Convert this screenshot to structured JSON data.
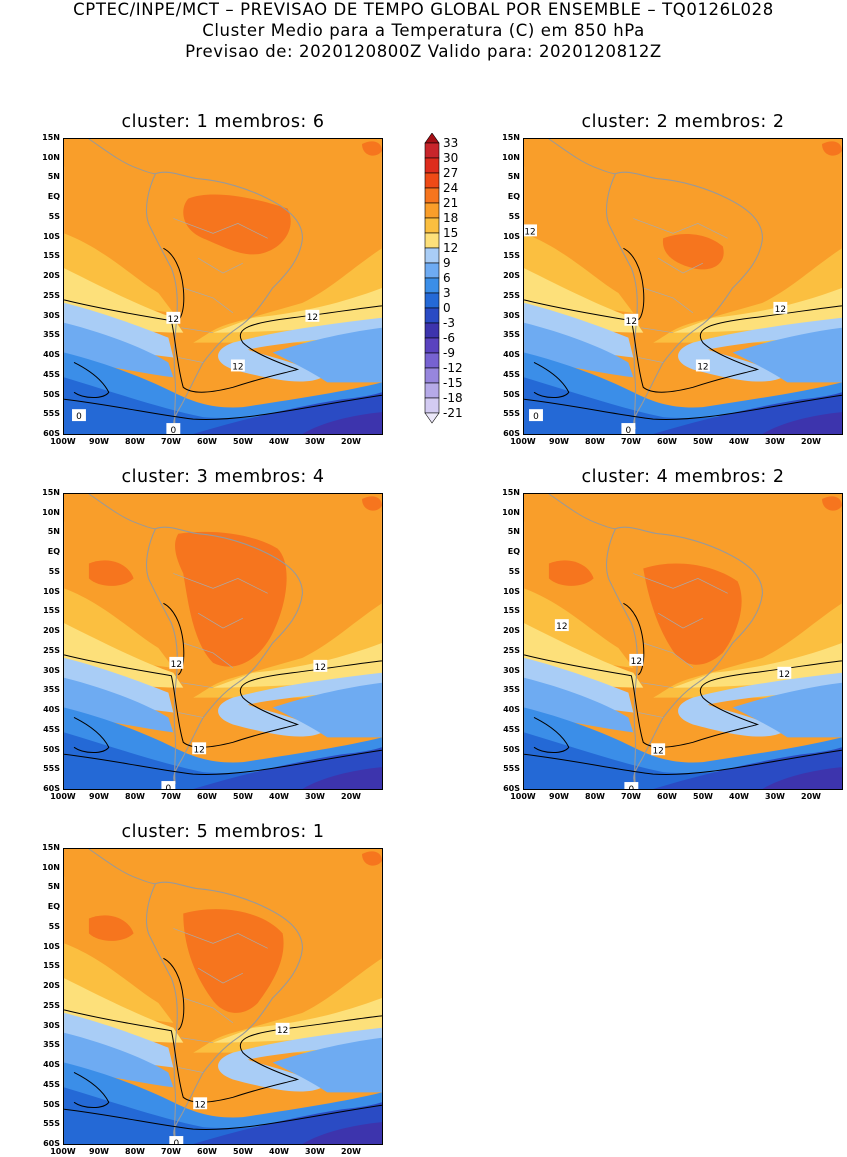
{
  "header": {
    "line1": "CPTEC/INPE/MCT – PREVISAO DE TEMPO GLOBAL POR ENSEMBLE – TQ0126L028",
    "line2": "Cluster Medio para a Temperatura (C) em 850 hPa",
    "line3": "Previsao de: 2020120800Z    Valido para: 2020120812Z"
  },
  "panels": [
    {
      "title": "cluster: 1   membros: 6",
      "labels": [
        "12",
        "12",
        "12",
        "0",
        "0"
      ]
    },
    {
      "title": "cluster: 2   membros: 2",
      "labels": [
        "12",
        "12",
        "12",
        "12",
        "0",
        "0"
      ]
    },
    {
      "title": "cluster: 3   membros: 4",
      "labels": [
        "12",
        "12",
        "12",
        "0"
      ]
    },
    {
      "title": "cluster: 4   membros: 2",
      "labels": [
        "12",
        "12",
        "12",
        "12",
        "0"
      ]
    },
    {
      "title": "cluster: 5   membros: 1",
      "labels": [
        "12",
        "12",
        "0"
      ]
    }
  ],
  "lat_ticks": [
    "15N",
    "10N",
    "5N",
    "EQ",
    "5S",
    "10S",
    "15S",
    "20S",
    "25S",
    "30S",
    "35S",
    "40S",
    "45S",
    "50S",
    "55S",
    "60S"
  ],
  "lon_ticks": [
    "100W",
    "90W",
    "80W",
    "70W",
    "60W",
    "50W",
    "40W",
    "30W",
    "20W"
  ],
  "colorbar": {
    "levels": [
      "33",
      "30",
      "27",
      "24",
      "21",
      "18",
      "15",
      "12",
      "9",
      "6",
      "3",
      "0",
      "-3",
      "-6",
      "-9",
      "-12",
      "-15",
      "-18",
      "-21"
    ],
    "colors": [
      "#a50f15",
      "#c8252b",
      "#dd2c1d",
      "#ee4a16",
      "#f6751e",
      "#f99e2a",
      "#fbbf40",
      "#fde07a",
      "#a9cdf6",
      "#6eabf2",
      "#3b8ee8",
      "#2469d6",
      "#2a4bc4",
      "#3d34ad",
      "#5a43bf",
      "#7762d1",
      "#9786dd",
      "#b6aae8",
      "#d3cbf2",
      "#ece8fa"
    ]
  }
}
